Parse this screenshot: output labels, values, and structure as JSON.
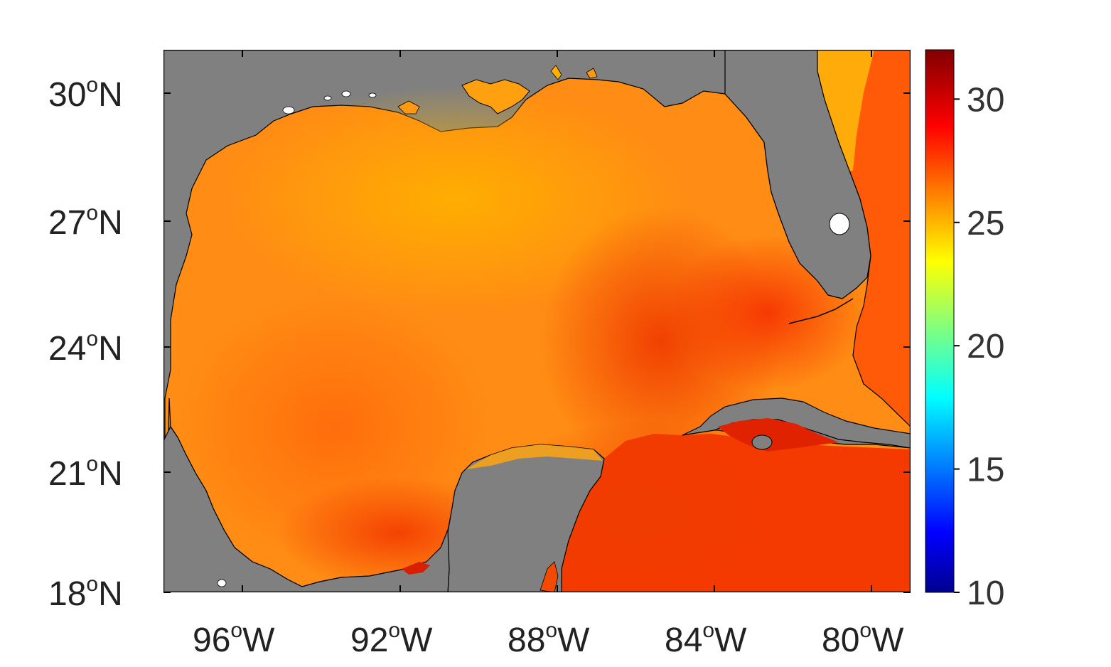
{
  "map": {
    "land_color": "#808080",
    "frame_color": "#000000",
    "lat_ticks": [
      {
        "deg": "30",
        "sup": "o",
        "hem": "N"
      },
      {
        "deg": "27",
        "sup": "o",
        "hem": "N"
      },
      {
        "deg": "24",
        "sup": "o",
        "hem": "N"
      },
      {
        "deg": "21",
        "sup": "o",
        "hem": "N"
      },
      {
        "deg": "18",
        "sup": "o",
        "hem": "N"
      }
    ],
    "lon_ticks": [
      {
        "deg": "96",
        "sup": "o",
        "hem": "W"
      },
      {
        "deg": "92",
        "sup": "o",
        "hem": "W"
      },
      {
        "deg": "88",
        "sup": "o",
        "hem": "W"
      },
      {
        "deg": "84",
        "sup": "o",
        "hem": "W"
      },
      {
        "deg": "80",
        "sup": "o",
        "hem": "W"
      }
    ]
  },
  "colorbar": {
    "colormap": "jet",
    "min": 10,
    "max": 32,
    "ticks": [
      "30",
      "25",
      "20",
      "15",
      "10"
    ]
  }
}
